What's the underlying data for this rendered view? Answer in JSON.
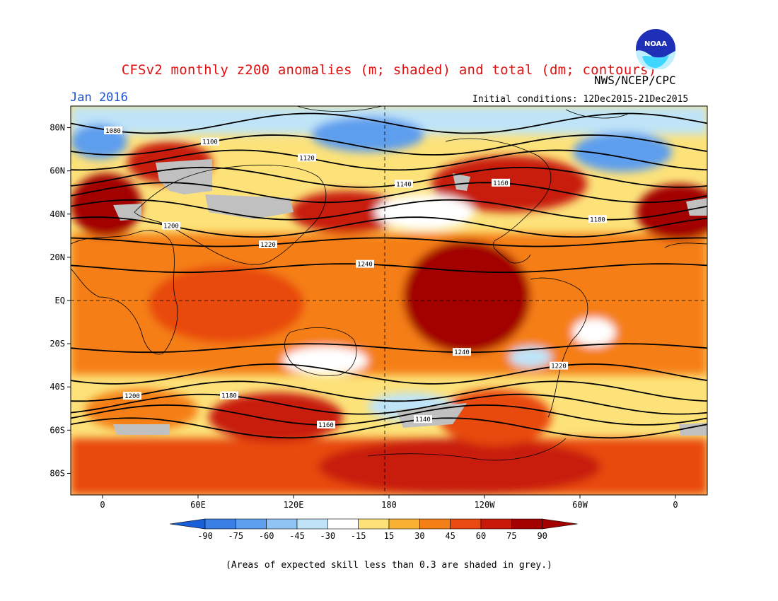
{
  "title": "CFSv2 monthly z200 anomalies (m; shaded) and total (dm; contours)",
  "agency": "NWS/NCEP/CPC",
  "logo_text": "NOAA",
  "month": "Jan 2016",
  "initial_conditions": "Initial conditions: 12Dec2015-21Dec2015",
  "note": "(Areas of expected skill less than 0.3 are shaded in grey.)",
  "lat_labels": [
    {
      "lat": 80,
      "text": "80N"
    },
    {
      "lat": 60,
      "text": "60N"
    },
    {
      "lat": 40,
      "text": "40N"
    },
    {
      "lat": 20,
      "text": "20N"
    },
    {
      "lat": 0,
      "text": "EQ"
    },
    {
      "lat": -20,
      "text": "20S"
    },
    {
      "lat": -40,
      "text": "40S"
    },
    {
      "lat": -60,
      "text": "60S"
    },
    {
      "lat": -80,
      "text": "80S"
    }
  ],
  "lon_labels": [
    {
      "lon": 0,
      "text": "0"
    },
    {
      "lon": 60,
      "text": "60E"
    },
    {
      "lon": 120,
      "text": "120E"
    },
    {
      "lon": 180,
      "text": "180"
    },
    {
      "lon": 240,
      "text": "120W"
    },
    {
      "lon": 300,
      "text": "60W"
    },
    {
      "lon": 360,
      "text": "0"
    }
  ],
  "colorbar": {
    "labels": [
      "-90",
      "-75",
      "-60",
      "-45",
      "-30",
      "-15",
      "15",
      "30",
      "45",
      "60",
      "75",
      "90"
    ],
    "colors": [
      "#1a5fd8",
      "#3a7fe6",
      "#5d9eee",
      "#8fc4f4",
      "#bfe4f8",
      "#ffffff",
      "#fde27a",
      "#f9b233",
      "#f57f17",
      "#e84a10",
      "#c81a08",
      "#a30000",
      "#a30000"
    ]
  },
  "shading_colors": {
    "blue_strong": "#5d9eee",
    "blue_light": "#bfe4f8",
    "yellow": "#fde27a",
    "orange_light": "#f9b233",
    "orange": "#f57f17",
    "red_orange": "#e84a10",
    "red": "#c81a08",
    "dark_red": "#a30000",
    "grey": "#c0c0c0"
  },
  "contours": [
    {
      "label": "1080",
      "lat": 82
    },
    {
      "label": "1100",
      "lat": 72
    },
    {
      "label": "1120",
      "lat": 65
    },
    {
      "label": "1140",
      "lat": 57
    },
    {
      "label": "1160",
      "lat": 50
    },
    {
      "label": "1180",
      "lat": 42
    },
    {
      "label": "1200",
      "lat": 34
    },
    {
      "label": "1220",
      "lat": 27
    },
    {
      "label": "1240",
      "lat": 15
    },
    {
      "label": "1240",
      "lat": -22
    },
    {
      "label": "1220",
      "lat": -34
    },
    {
      "label": "1200",
      "lat": -42
    },
    {
      "label": "1180",
      "lat": -48
    },
    {
      "label": "1160",
      "lat": -53
    },
    {
      "label": "1140",
      "lat": -59
    }
  ]
}
